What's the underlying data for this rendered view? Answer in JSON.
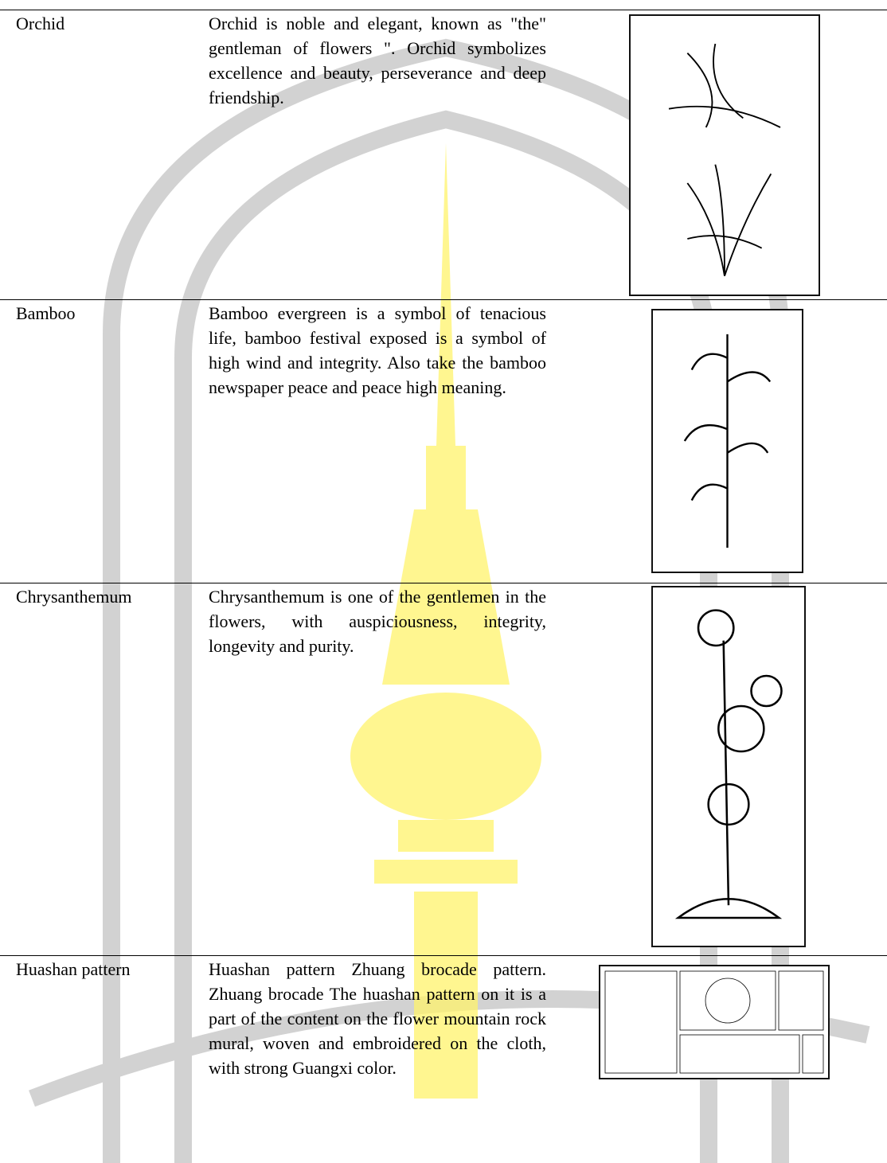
{
  "table": {
    "rows": [
      {
        "name": "Orchid",
        "description": "Orchid is noble and elegant, known as \"the\" gentleman of flowers \". Orchid symbolizes excellence and beauty, perseverance and deep friendship."
      },
      {
        "name": "Bamboo",
        "description": "Bamboo evergreen is a symbol of tenacious life, bamboo festival exposed is a symbol of high wind and integrity. Also take the bamboo newspaper peace and peace high meaning."
      },
      {
        "name": "Chrysanthemum",
        "description": "Chrysanthemum is one of the gentlemen in the flowers, with auspiciousness, integrity, longevity and purity."
      },
      {
        "name": "Huashan pattern",
        "description": "Huashan pattern Zhuang brocade pattern. Zhuang brocade The huashan pattern on it is a part of the content on the flower mountain rock mural, woven and embroidered on the cloth, with strong Guangxi color."
      }
    ]
  }
}
